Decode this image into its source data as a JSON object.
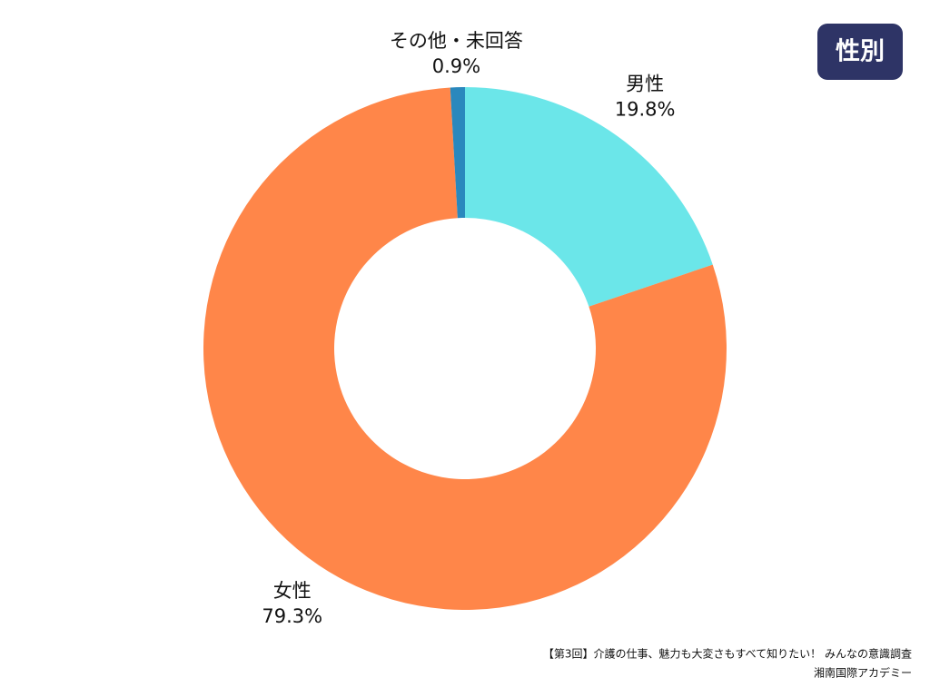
{
  "chart_data": {
    "type": "donut",
    "title": "性別",
    "categories": [
      "男性",
      "女性",
      "その他・未回答"
    ],
    "values": [
      19.8,
      79.3,
      0.9
    ],
    "value_labels": [
      "19.8%",
      "79.3%",
      "0.9%"
    ],
    "colors": [
      "#6be6e9",
      "#ff8649",
      "#2a88bd"
    ],
    "source": "【第3回】介護の仕事、魅力も大変さもすべて知りたい！ みんなの意識調査",
    "publisher": "湘南国際アカデミー"
  }
}
